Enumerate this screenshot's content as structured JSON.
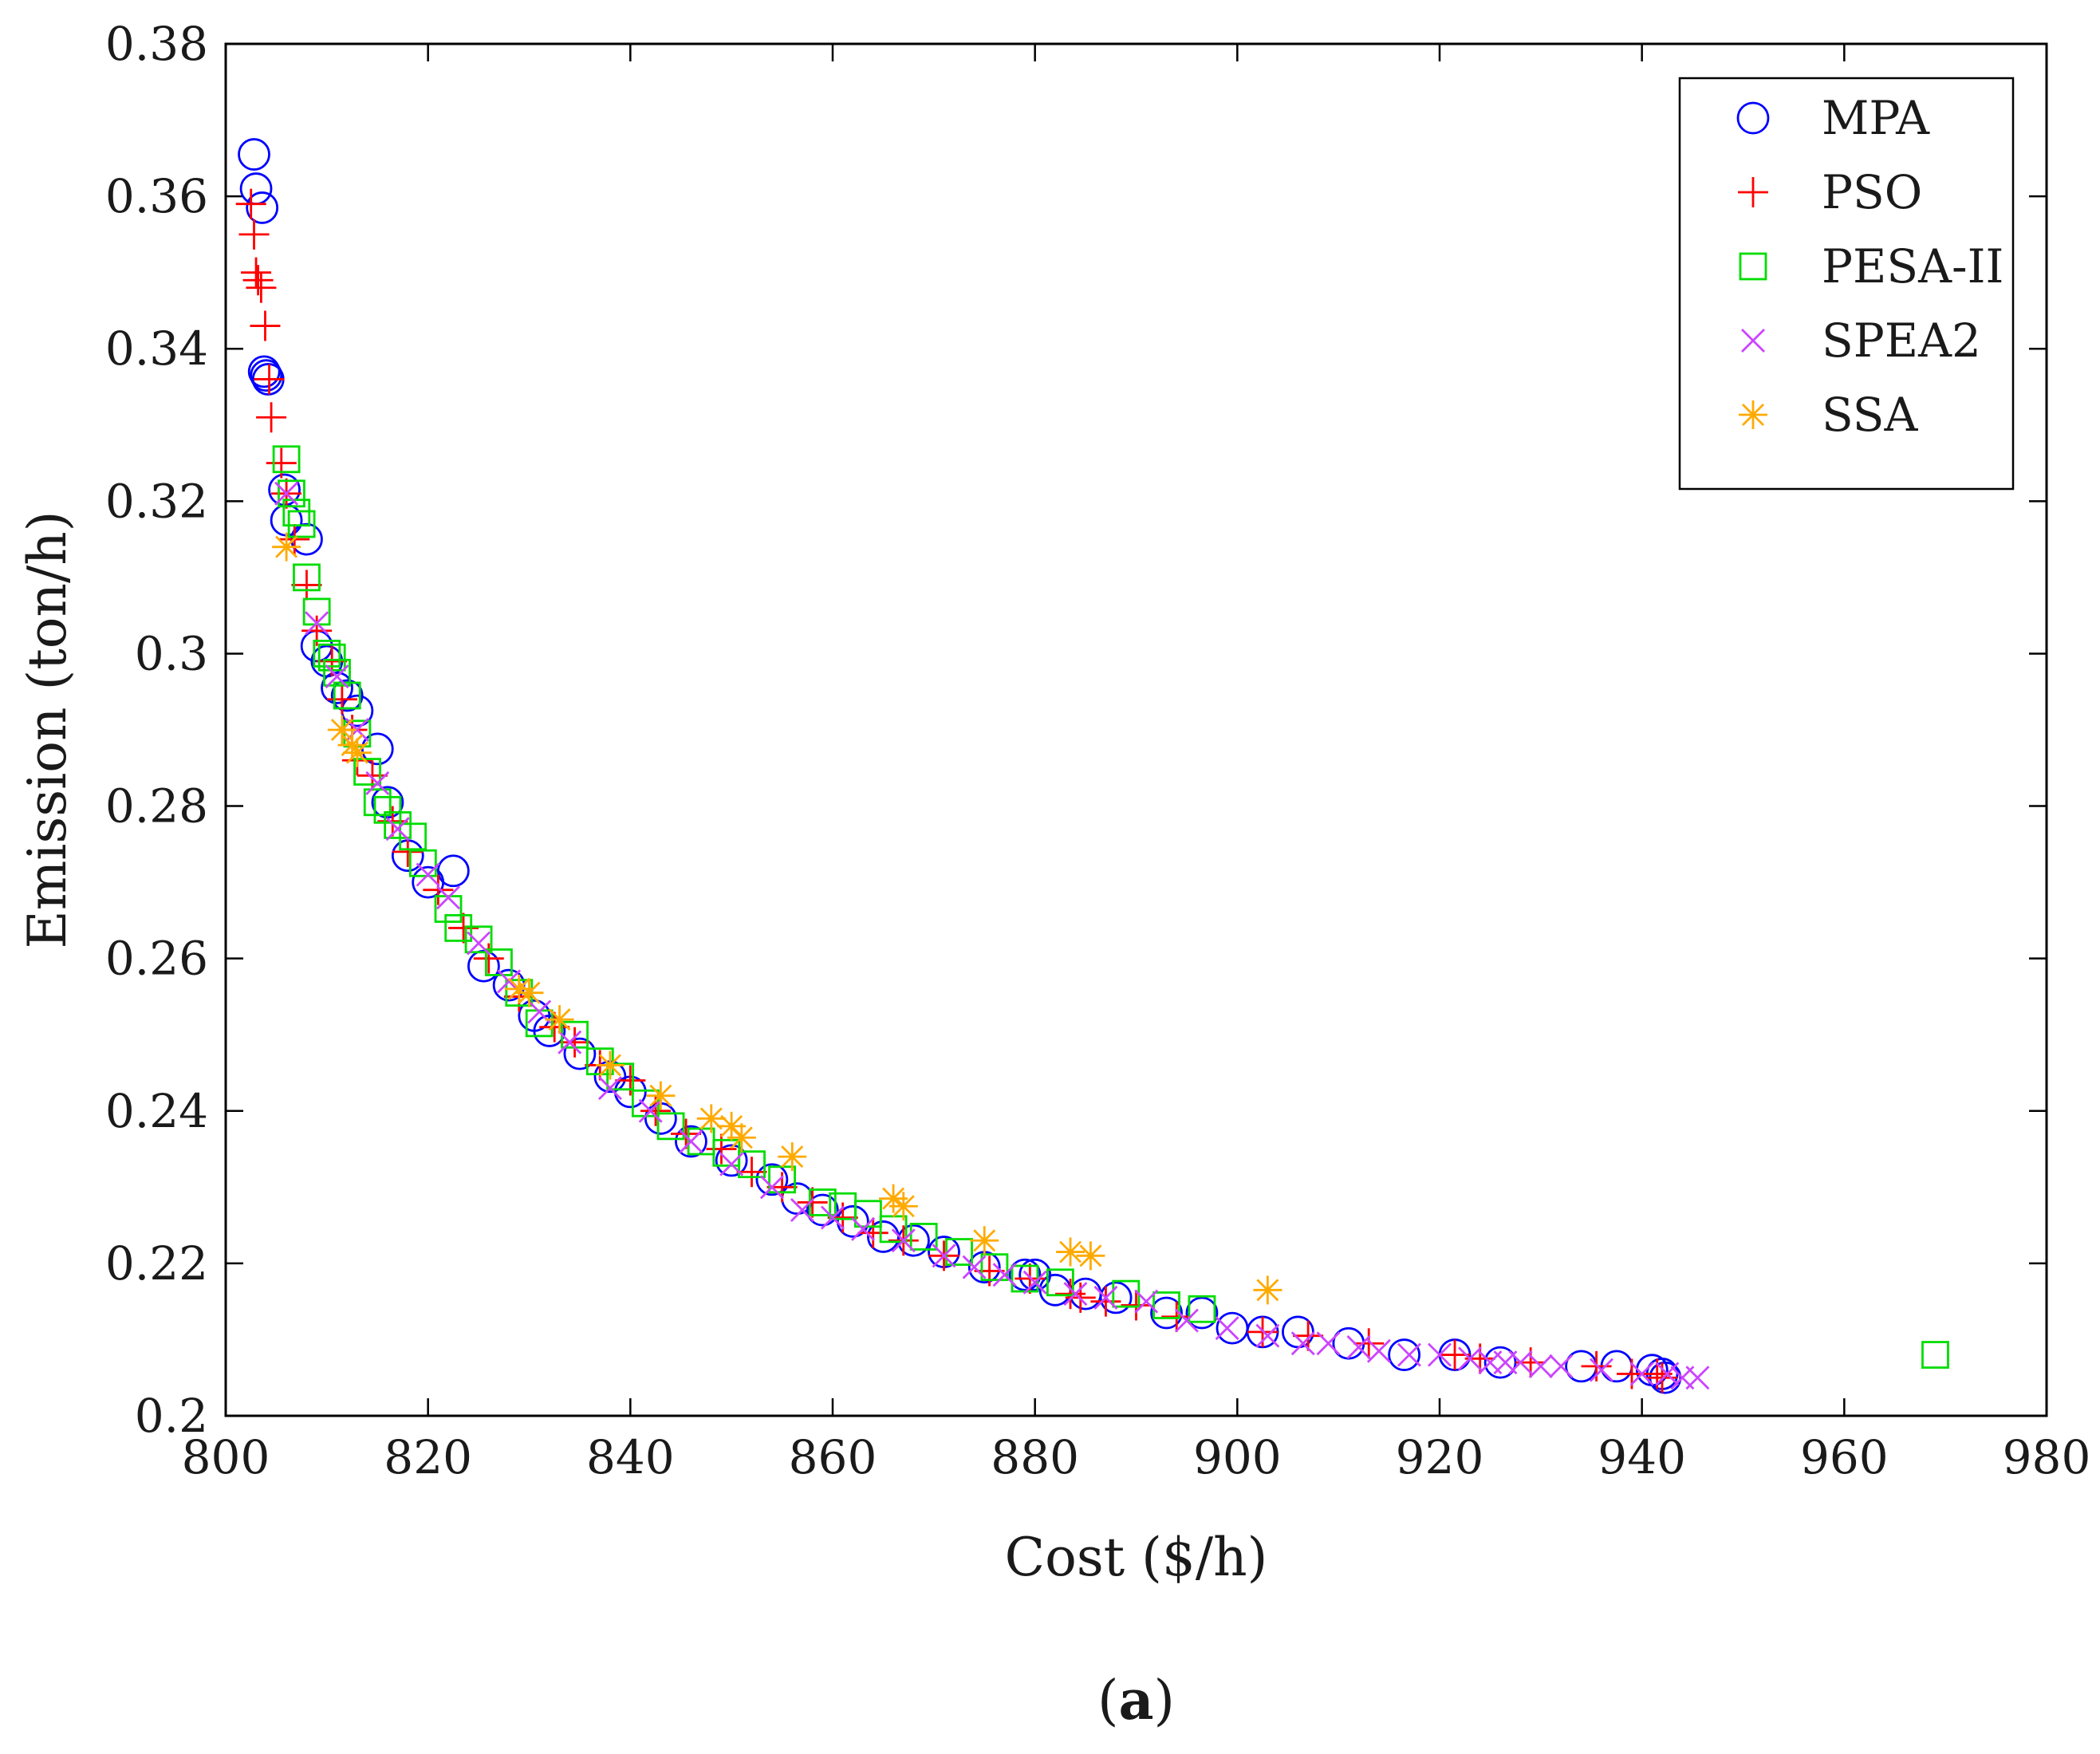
{
  "chart_data": {
    "type": "scatter",
    "title": "",
    "xlabel": "Cost ($/h)",
    "ylabel": "Emission (ton/h)",
    "xlim": [
      800,
      980
    ],
    "ylim": [
      0.2,
      0.38
    ],
    "xticks": [
      800,
      820,
      840,
      860,
      880,
      900,
      920,
      940,
      960,
      980
    ],
    "yticks": [
      0.2,
      0.22,
      0.24,
      0.26,
      0.28,
      0.3,
      0.32,
      0.34,
      0.36,
      0.38
    ],
    "xtick_labels": [
      "800",
      "820",
      "840",
      "860",
      "880",
      "900",
      "920",
      "940",
      "960",
      "980"
    ],
    "ytick_labels": [
      "0.2",
      "0.22",
      "0.24",
      "0.26",
      "0.28",
      "0.3",
      "0.32",
      "0.34",
      "0.36",
      "0.38"
    ],
    "legend_position": "top-right",
    "caption": {
      "open": "(",
      "letter": "a",
      "close": ")"
    },
    "series": [
      {
        "name": "MPA",
        "marker": "circle",
        "color": "#0000ff",
        "x": [
          802.8,
          803.0,
          803.6,
          803.8,
          804.0,
          804.2,
          805.8,
          806.0,
          808.0,
          809.0,
          810.0,
          811.0,
          812.0,
          813.0,
          815.0,
          816.0,
          818.0,
          820.0,
          822.5,
          825.5,
          828.0,
          830.5,
          832.0,
          835.0,
          838.0,
          840.0,
          843.0,
          846.0,
          850.0,
          854.0,
          856.5,
          859.0,
          862.0,
          865.0,
          868.0,
          871.0,
          875.0,
          879.0,
          880.0,
          882.0,
          885.0,
          888.0,
          893.0,
          896.5,
          899.5,
          902.5,
          906.0,
          911.0,
          916.5,
          921.5,
          926.0,
          934.0,
          937.5,
          941.0,
          942.0,
          942.3
        ],
        "y": [
          0.3655,
          0.361,
          0.3585,
          0.337,
          0.3365,
          0.336,
          0.3215,
          0.3175,
          0.315,
          0.301,
          0.299,
          0.2955,
          0.2945,
          0.2925,
          0.2875,
          0.2805,
          0.2735,
          0.27,
          0.2715,
          0.259,
          0.2565,
          0.2525,
          0.2505,
          0.2475,
          0.2445,
          0.2425,
          0.239,
          0.236,
          0.2335,
          0.231,
          0.2285,
          0.227,
          0.2255,
          0.2235,
          0.223,
          0.2215,
          0.2195,
          0.2185,
          0.2185,
          0.2165,
          0.216,
          0.2155,
          0.2135,
          0.2135,
          0.2115,
          0.211,
          0.211,
          0.2095,
          0.208,
          0.208,
          0.207,
          0.2065,
          0.2065,
          0.206,
          0.2055,
          0.205
        ]
      },
      {
        "name": "PSO",
        "marker": "plus",
        "color": "#ff0000",
        "x": [
          802.5,
          802.8,
          803.0,
          803.2,
          803.5,
          803.9,
          804.3,
          804.5,
          805.5,
          806.0,
          806.8,
          808.0,
          809.0,
          810.5,
          811.5,
          812.5,
          813.0,
          814.5,
          816.5,
          818.0,
          821.0,
          823.5,
          826.0,
          829.0,
          832.5,
          834.5,
          837.0,
          840.0,
          842.5,
          845.5,
          849.0,
          852.0,
          855.0,
          858.0,
          861.0,
          864.0,
          867.0,
          871.0,
          875.5,
          879.5,
          883.5,
          884.5,
          887.0,
          890.0,
          894.0,
          902.5,
          907.0,
          913.0,
          921.5,
          924.0,
          929.0,
          935.5,
          939.0,
          941.5,
          942.0
        ],
        "y": [
          0.359,
          0.355,
          0.35,
          0.349,
          0.348,
          0.343,
          0.336,
          0.331,
          0.325,
          0.321,
          0.315,
          0.309,
          0.303,
          0.299,
          0.294,
          0.29,
          0.286,
          0.284,
          0.278,
          0.274,
          0.269,
          0.264,
          0.26,
          0.255,
          0.251,
          0.249,
          0.246,
          0.244,
          0.24,
          0.237,
          0.235,
          0.232,
          0.23,
          0.228,
          0.226,
          0.224,
          0.223,
          0.221,
          0.219,
          0.218,
          0.216,
          0.2155,
          0.215,
          0.2145,
          0.213,
          0.211,
          0.2105,
          0.2095,
          0.208,
          0.2075,
          0.207,
          0.2065,
          0.2055,
          0.2055,
          0.205
        ]
      },
      {
        "name": "PESA-II",
        "marker": "square",
        "color": "#00dd00",
        "x": [
          806.0,
          806.5,
          807.0,
          807.5,
          808.0,
          809.0,
          810.0,
          810.5,
          811.0,
          812.0,
          813.0,
          814.0,
          815.0,
          816.0,
          817.0,
          818.5,
          819.5,
          822.0,
          823.0,
          825.0,
          827.0,
          829.0,
          831.0,
          834.5,
          837.0,
          839.0,
          841.5,
          844.0,
          847.0,
          849.5,
          852.0,
          855.0,
          859.0,
          861.0,
          863.5,
          866.0,
          869.0,
          872.5,
          876.0,
          879.0,
          882.5,
          889.0,
          893.0,
          896.5,
          969.0
        ],
        "y": [
          0.3255,
          0.321,
          0.3185,
          0.317,
          0.31,
          0.3055,
          0.3,
          0.2995,
          0.2975,
          0.2945,
          0.2895,
          0.2845,
          0.2805,
          0.2795,
          0.2775,
          0.276,
          0.2725,
          0.2665,
          0.264,
          0.2625,
          0.2595,
          0.2555,
          0.2515,
          0.25,
          0.2465,
          0.2445,
          0.241,
          0.238,
          0.236,
          0.2345,
          0.233,
          0.231,
          0.228,
          0.2275,
          0.2265,
          0.2245,
          0.2235,
          0.2215,
          0.2195,
          0.218,
          0.2175,
          0.216,
          0.2145,
          0.214,
          0.208
        ]
      },
      {
        "name": "SPEA2",
        "marker": "x",
        "color": "#cc44ff",
        "x": [
          806.0,
          809.0,
          811.0,
          813.0,
          815.0,
          817.0,
          820.0,
          822.0,
          825.0,
          828.0,
          831.0,
          834.0,
          838.0,
          842.0,
          846.0,
          850.0,
          854.0,
          857.0,
          860.0,
          863.0,
          867.0,
          871.0,
          874.0,
          877.0,
          880.0,
          884.0,
          887.0,
          891.0,
          895.0,
          899.0,
          903.0,
          906.5,
          909.0,
          912.0,
          914.0,
          917.0,
          920.0,
          923.0,
          925.0,
          926.5,
          928.0,
          930.0,
          932.0,
          936.0,
          940.0,
          942.5,
          944.0,
          945.5
        ],
        "y": [
          0.321,
          0.304,
          0.297,
          0.29,
          0.283,
          0.277,
          0.271,
          0.268,
          0.262,
          0.257,
          0.253,
          0.249,
          0.243,
          0.24,
          0.236,
          0.233,
          0.23,
          0.227,
          0.226,
          0.2245,
          0.223,
          0.221,
          0.2195,
          0.2185,
          0.2175,
          0.216,
          0.2155,
          0.215,
          0.2125,
          0.2115,
          0.2105,
          0.2095,
          0.2095,
          0.209,
          0.2085,
          0.208,
          0.208,
          0.2075,
          0.207,
          0.207,
          0.207,
          0.2065,
          0.2065,
          0.206,
          0.2055,
          0.2055,
          0.205,
          0.205
        ]
      },
      {
        "name": "SSA",
        "marker": "star",
        "color": "#ffaa00",
        "x": [
          806.0,
          811.5,
          812.5,
          813.0,
          829.0,
          830.0,
          833.0,
          838.0,
          843.0,
          848.0,
          850.0,
          851.0,
          856.0,
          866.0,
          867.0,
          875.0,
          883.5,
          885.5,
          903.0
        ],
        "y": [
          0.314,
          0.29,
          0.288,
          0.287,
          0.256,
          0.2555,
          0.252,
          0.246,
          0.242,
          0.239,
          0.238,
          0.2365,
          0.234,
          0.2285,
          0.2275,
          0.223,
          0.2215,
          0.221,
          0.2165
        ]
      }
    ]
  }
}
